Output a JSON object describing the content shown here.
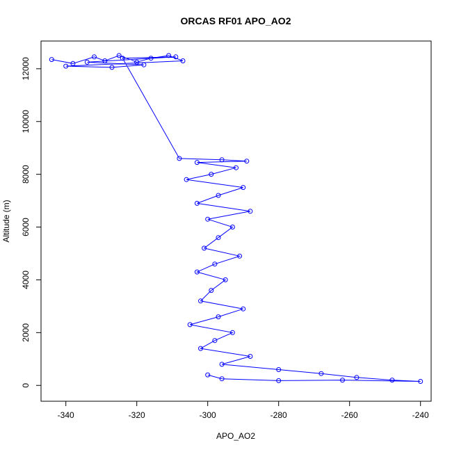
{
  "chart_data": {
    "type": "scatter",
    "title": "ORCAS RF01 APO_AO2",
    "xlabel": "APO_AO2",
    "ylabel": "Altitude (m)",
    "xlim": [
      -347,
      -237
    ],
    "ylim": [
      -600,
      13050
    ],
    "x_ticks": [
      -340,
      -320,
      -300,
      -280,
      -260,
      -240
    ],
    "y_ticks": [
      0,
      2000,
      4000,
      6000,
      8000,
      10000,
      12000
    ],
    "grid": false,
    "legend": "none",
    "color": "#0000ff",
    "marker": "open-circle",
    "connected": true,
    "series": [
      {
        "profile": [
          [
            -344,
            12350
          ],
          [
            -338,
            12200
          ],
          [
            -332,
            12450
          ],
          [
            -329,
            12300
          ],
          [
            -325,
            12500
          ],
          [
            -320,
            12250
          ],
          [
            -316,
            12400
          ],
          [
            -311,
            12500
          ],
          [
            -307,
            12300
          ],
          [
            -340,
            12100
          ],
          [
            -327,
            12050
          ],
          [
            -318,
            12150
          ],
          [
            -334,
            12250
          ],
          [
            -309,
            12450
          ],
          [
            -324,
            12400
          ],
          [
            -308,
            8600
          ],
          [
            -296,
            8550
          ],
          [
            -289,
            8500
          ],
          [
            -303,
            8450
          ],
          [
            -292,
            8250
          ],
          [
            -299,
            8000
          ],
          [
            -306,
            7800
          ],
          [
            -290,
            7500
          ],
          [
            -297,
            7200
          ],
          [
            -303,
            6900
          ],
          [
            -288,
            6600
          ],
          [
            -300,
            6300
          ],
          [
            -293,
            6000
          ],
          [
            -297,
            5600
          ],
          [
            -301,
            5200
          ],
          [
            -291,
            4900
          ],
          [
            -298,
            4600
          ],
          [
            -303,
            4300
          ],
          [
            -295,
            4000
          ],
          [
            -299,
            3600
          ],
          [
            -302,
            3200
          ],
          [
            -290,
            2900
          ],
          [
            -297,
            2600
          ],
          [
            -305,
            2300
          ],
          [
            -293,
            2000
          ],
          [
            -298,
            1700
          ],
          [
            -302,
            1400
          ],
          [
            -288,
            1100
          ],
          [
            -296,
            800
          ],
          [
            -280,
            600
          ],
          [
            -268,
            450
          ],
          [
            -258,
            300
          ],
          [
            -248,
            200
          ],
          [
            -240,
            150
          ],
          [
            -262,
            200
          ],
          [
            -280,
            180
          ],
          [
            -296,
            250
          ],
          [
            -300,
            400
          ]
        ]
      }
    ]
  }
}
